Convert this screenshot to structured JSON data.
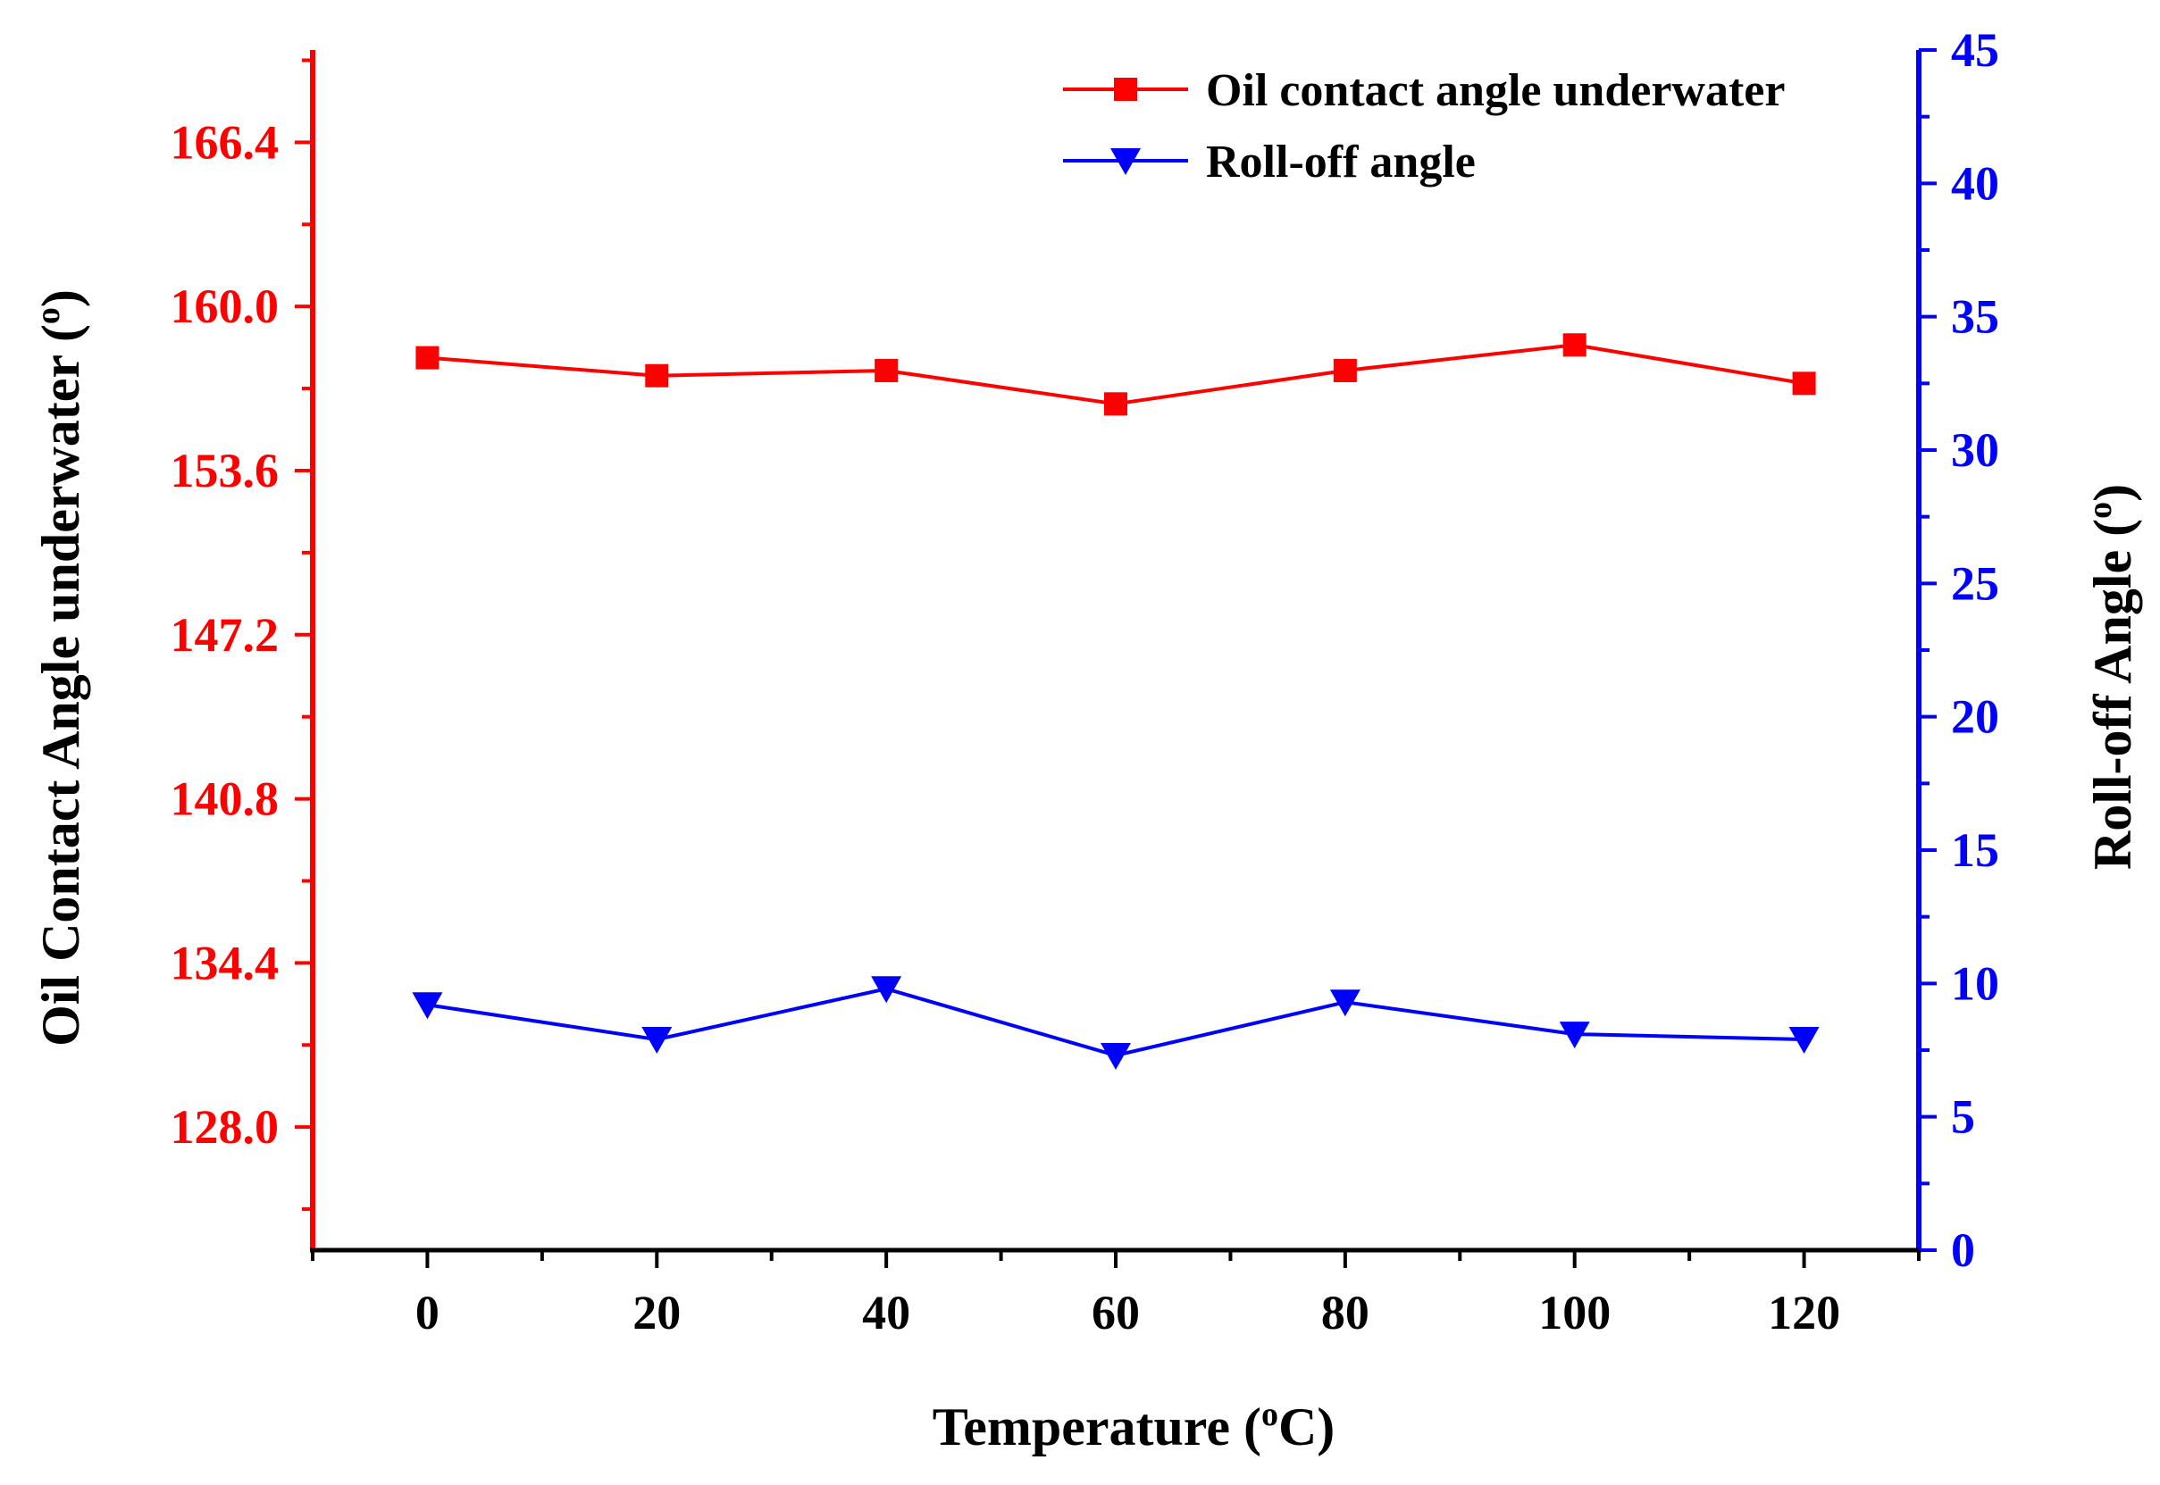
{
  "chart_data": {
    "type": "line",
    "x": [
      0,
      20,
      40,
      60,
      80,
      100,
      120
    ],
    "xlabel": "Temperature",
    "xlabel_unit": "C",
    "xlabel_superscript": "o",
    "xlim": [
      -10,
      130
    ],
    "x_ticks": [
      "0",
      "20",
      "40",
      "60",
      "80",
      "100",
      "120"
    ],
    "left_axis": {
      "label": "Oil Contact Angle underwater",
      "label_superscript": "o",
      "ylim": [
        123.2,
        170
      ],
      "ticks": [
        "128.0",
        "134.4",
        "140.8",
        "147.2",
        "153.6",
        "160.0",
        "166.4"
      ],
      "color": "#ff0000"
    },
    "right_axis": {
      "label": "Roll-off Angle",
      "label_superscript": "o",
      "ylim": [
        0,
        45
      ],
      "ticks": [
        "0",
        "5",
        "10",
        "15",
        "20",
        "25",
        "30",
        "35",
        "40",
        "45"
      ],
      "color": "#0000ff"
    },
    "series": [
      {
        "name": "Oil contact angle underwater",
        "axis": "left",
        "marker": "square",
        "color": "#ff0000",
        "values": [
          158.0,
          157.3,
          157.5,
          156.2,
          157.5,
          158.5,
          157.0
        ]
      },
      {
        "name": "Roll-off angle",
        "axis": "right",
        "marker": "triangle-down",
        "color": "#0000ff",
        "values": [
          9.2,
          7.9,
          9.8,
          7.3,
          9.3,
          8.1,
          7.9
        ]
      }
    ],
    "legend_position": "top-right",
    "grid": false
  }
}
